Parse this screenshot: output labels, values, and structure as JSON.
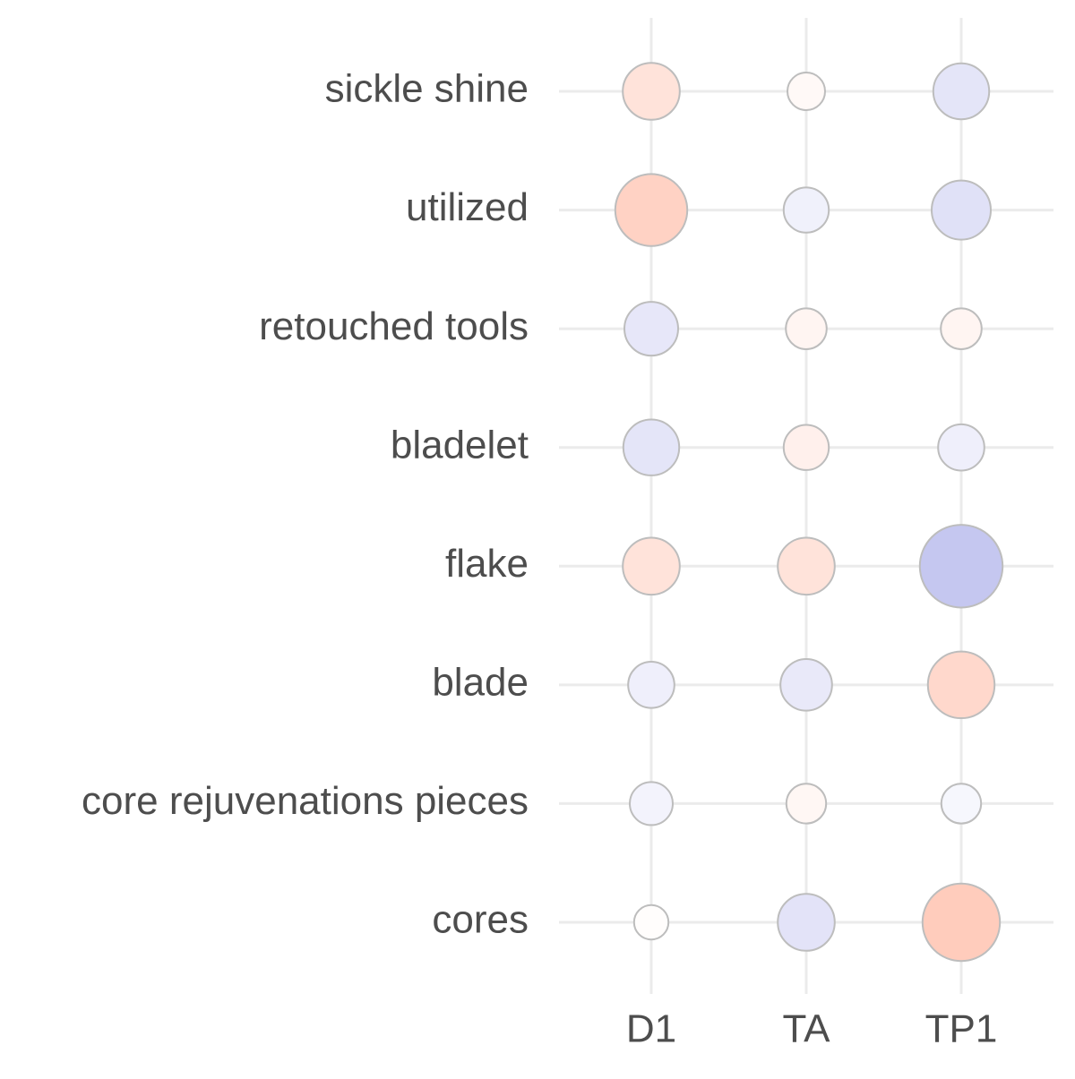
{
  "chart_data": {
    "type": "balloon",
    "x": [
      "D1",
      "TA",
      "TP1"
    ],
    "categories": [
      "sickle shine",
      "utilized",
      "retouched tools",
      "bladelet",
      "flake",
      "blade",
      "core rejuvenations pieces",
      "cores"
    ],
    "values": [
      [
        2.3,
        0.5,
        -2.2
      ],
      [
        3.7,
        -1.2,
        -2.5
      ],
      [
        -2.0,
        0.8,
        0.8
      ],
      [
        -2.2,
        1.2,
        -1.3
      ],
      [
        2.3,
        2.3,
        -4.7
      ],
      [
        -1.3,
        -1.8,
        3.2
      ],
      [
        -1.0,
        0.7,
        -0.7
      ],
      [
        0.2,
        -2.3,
        4.2
      ]
    ],
    "color_low": "#9d9fe6",
    "color_high": "#ff9e80",
    "color_limit": 8,
    "grid": true
  }
}
